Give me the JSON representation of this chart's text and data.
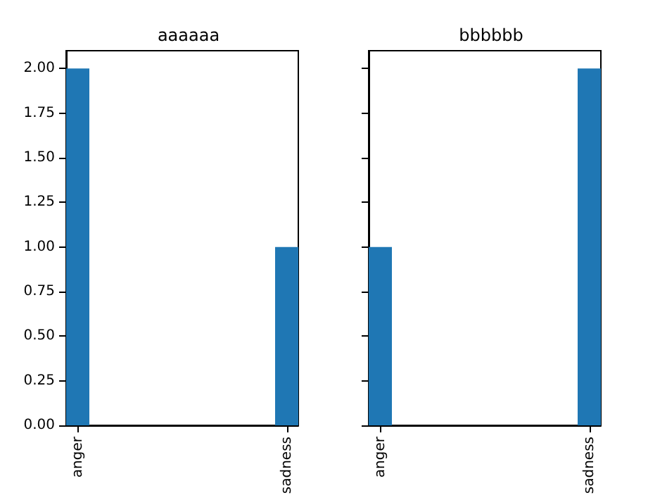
{
  "chart_data": [
    {
      "type": "bar",
      "title": "aaaaaa",
      "categories": [
        "anger",
        null,
        null,
        null,
        null,
        null,
        null,
        null,
        null,
        "sadness"
      ],
      "values": [
        2,
        0,
        0,
        0,
        0,
        0,
        0,
        0,
        0,
        1
      ],
      "color": "#1f77b4",
      "ylim": [
        0,
        2.1
      ],
      "yticks": [
        {
          "value": 0,
          "label": "0.00"
        },
        {
          "value": 0.25,
          "label": "0.25"
        },
        {
          "value": 0.5,
          "label": "0.50"
        },
        {
          "value": 0.75,
          "label": "0.75"
        },
        {
          "value": 1,
          "label": "1.00"
        },
        {
          "value": 1.25,
          "label": "1.25"
        },
        {
          "value": 1.5,
          "label": "1.50"
        },
        {
          "value": 1.75,
          "label": "1.75"
        },
        {
          "value": 2,
          "label": "2.00"
        }
      ],
      "grid": false
    },
    {
      "type": "bar",
      "title": "bbbbbb",
      "categories": [
        "anger",
        null,
        null,
        null,
        null,
        null,
        null,
        null,
        null,
        "sadness"
      ],
      "values": [
        1,
        0,
        0,
        0,
        0,
        0,
        0,
        0,
        0,
        2
      ],
      "color": "#1f77b4",
      "ylim": [
        0,
        2.1
      ],
      "yticks": [
        {
          "value": 0,
          "label": null
        },
        {
          "value": 0.25,
          "label": null
        },
        {
          "value": 0.5,
          "label": null
        },
        {
          "value": 0.75,
          "label": null
        },
        {
          "value": 1,
          "label": null
        },
        {
          "value": 1.25,
          "label": null
        },
        {
          "value": 1.5,
          "label": null
        },
        {
          "value": 1.75,
          "label": null
        },
        {
          "value": 2,
          "label": null
        }
      ],
      "tick_labels": "x",
      "grid": false
    }
  ]
}
